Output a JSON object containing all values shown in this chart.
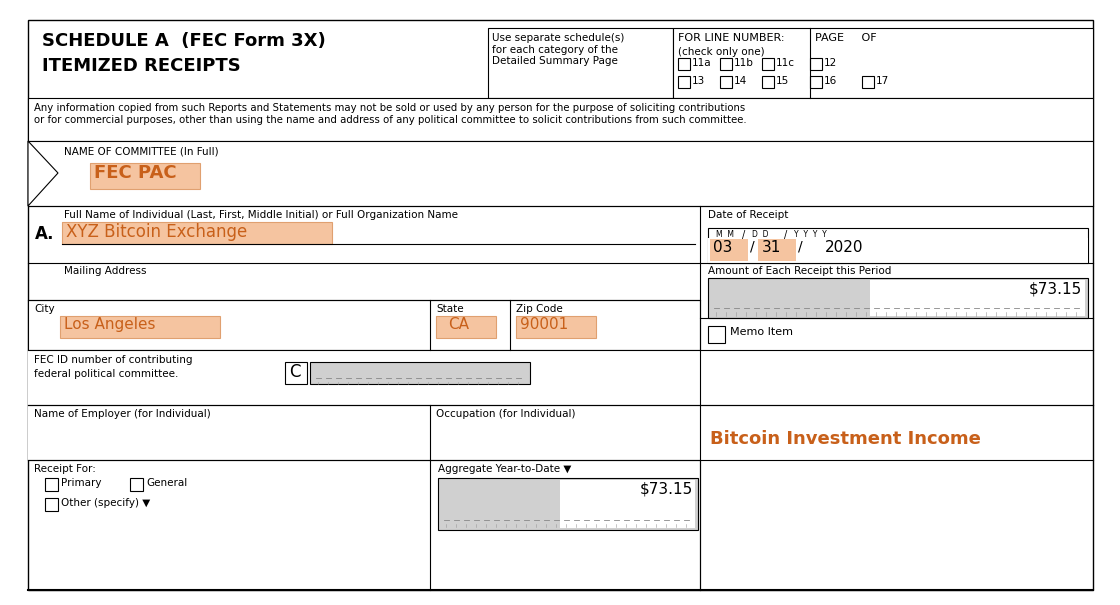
{
  "title_line1": "SCHEDULE A  (FEC Form 3X)",
  "title_line2": "ITEMIZED RECEIPTS",
  "use_separate": "Use separate schedule(s)\nfor each category of the\nDetailed Summary Page",
  "for_line_number": "FOR LINE NUMBER:",
  "check_only_one": "(check only one)",
  "page_of": "PAGE     OF",
  "checkboxes_row1": [
    "11a",
    "11b",
    "11c",
    "12"
  ],
  "checkboxes_row2": [
    "13",
    "14",
    "15",
    "16",
    "17"
  ],
  "disclaimer": "Any information copied from such Reports and Statements may not be sold or used by any person for the purpose of soliciting contributions\nor for commercial purposes, other than using the name and address of any political committee to solicit contributions from such committee.",
  "committee_label": "NAME OF COMMITTEE (In Full)",
  "committee_name": "FEC PAC",
  "full_name_label": "Full Name of Individual (Last, First, Middle Initial) or Full Organization Name",
  "full_name_value": "XYZ Bitcoin Exchange",
  "item_label": "A.",
  "mailing_address": "Mailing Address",
  "city_label": "City",
  "city_value": "Los Angeles",
  "state_label": "State",
  "state_value": "CA",
  "zip_label": "Zip Code",
  "zip_value": "90001",
  "fec_id_label1": "FEC ID number of contributing",
  "fec_id_label2": "federal political committee.",
  "fec_id_c": "C",
  "employer_label": "Name of Employer (for Individual)",
  "occupation_label": "Occupation (for Individual)",
  "receipt_for": "Receipt For:",
  "primary": "Primary",
  "general": "General",
  "other_specify": "Other (specify) ▼",
  "aggregate_label": "Aggregate Year-to-Date ▼",
  "aggregate_value": "$73.15",
  "date_of_receipt": "Date of Receipt",
  "date_mm_label": "M M",
  "date_dd_label": "D D",
  "date_yyyy_label": "Y  Y  Y  Y",
  "date_mm_val": "03",
  "date_dd_val": "31",
  "date_yyyy_val": "2020",
  "amount_label": "Amount of Each Receipt this Period",
  "amount_value": "$73.15",
  "memo_item": "Memo Item",
  "bitcoin_income": "Bitcoin Investment Income",
  "highlight_light": "#f5c4a0",
  "date_highlight": "#c8a882",
  "bg_color": "#ffffff",
  "orange_text": "#c8601a",
  "gray_fill": "#cccccc",
  "ruler_bg": "#d0d0d0"
}
